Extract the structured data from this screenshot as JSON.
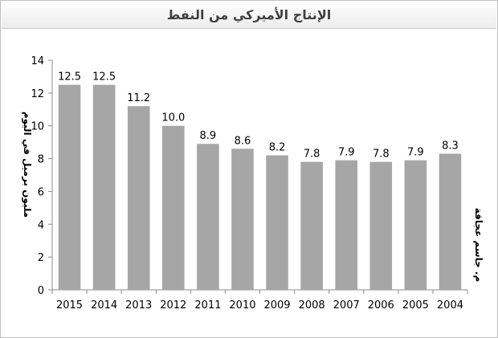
{
  "chart_data": {
    "type": "bar",
    "title": "الإنتاج الأميركي من النفط",
    "ylabel": "مليون برميل في اليوم",
    "xlabel": "",
    "categories": [
      "2015",
      "2014",
      "2013",
      "2012",
      "2011",
      "2010",
      "2009",
      "2008",
      "2007",
      "2006",
      "2005",
      "2004"
    ],
    "values": [
      12.5,
      12.5,
      11.2,
      10.0,
      8.9,
      8.6,
      8.2,
      7.8,
      7.9,
      7.8,
      7.9,
      8.3
    ],
    "value_labels": [
      "12.5",
      "12.5",
      "11.2",
      "10.0",
      "8.9",
      "8.6",
      "8.2",
      "7.8",
      "7.9",
      "7.8",
      "7.9",
      "8.3"
    ],
    "ylim": [
      0,
      14
    ],
    "yticks": [
      0,
      2,
      4,
      6,
      8,
      10,
      12,
      14
    ],
    "grid": false,
    "legend": "none",
    "bar_color": "#a6a6a6",
    "credit": "م. جاسم عجاقة"
  }
}
